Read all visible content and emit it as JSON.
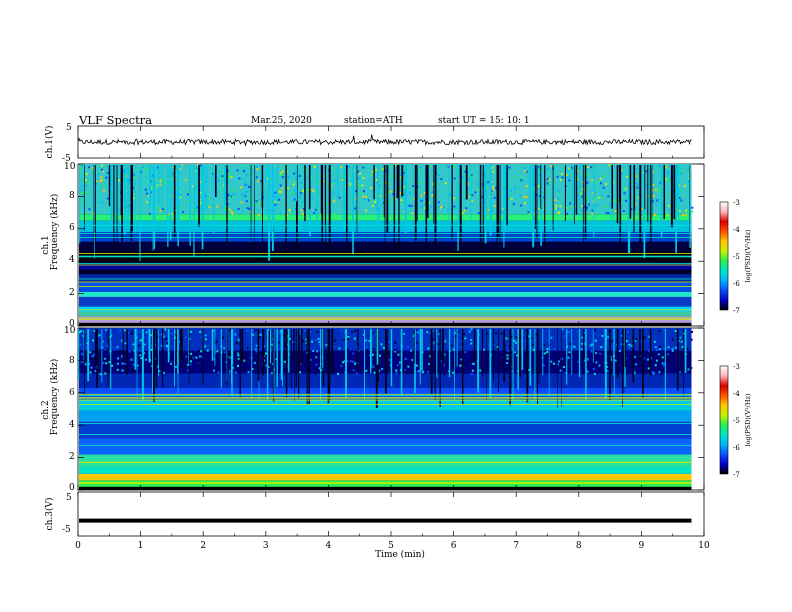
{
  "header": {
    "title": "VLF  Spectra",
    "date": "Mar.25,  2020",
    "station": "station=ATH",
    "start": "start  UT  =   15: 10: 1"
  },
  "chart_data": [
    {
      "type": "line",
      "name": "ch1-waveform",
      "ylabel": "ch.1(V)",
      "ylim": [
        -5,
        5
      ],
      "yticks": [
        "5",
        "-5"
      ],
      "xlim": [
        0,
        10
      ]
    },
    {
      "type": "heatmap",
      "name": "ch1-spectrogram",
      "ylabel_channel": "ch.1",
      "ylabel": "Frequency (kHz)",
      "ylim": [
        0,
        10
      ],
      "yticks": [
        "0",
        "2",
        "4",
        "6",
        "8",
        "10"
      ],
      "xlim": [
        0,
        9.8
      ],
      "colorbar": {
        "label": "log(PSD)(V²/Hz)",
        "range": [
          -7,
          -3
        ],
        "ticks": [
          "-3",
          "-4",
          "-5",
          "-6",
          "-7"
        ],
        "colors": [
          "#000000",
          "#0000c8",
          "#0a50ff",
          "#00b4ff",
          "#00e6c8",
          "#28f050",
          "#c8f000",
          "#ffc800",
          "#ff5000",
          "#dc0000",
          "#ffb4b4",
          "#ffffff"
        ]
      }
    },
    {
      "type": "heatmap",
      "name": "ch2-spectrogram",
      "ylabel_channel": "ch.2",
      "ylabel": "Frequency (kHz)",
      "ylim": [
        0,
        10
      ],
      "yticks": [
        "0",
        "2",
        "4",
        "6",
        "8",
        "10"
      ],
      "xlim": [
        0,
        9.8
      ],
      "colorbar": {
        "label": "log(PSD)(V²/Hz)",
        "range": [
          -7,
          -3
        ],
        "ticks": [
          "-3",
          "-4",
          "-5",
          "-6",
          "-7"
        ]
      }
    },
    {
      "type": "line",
      "name": "ch3-waveform",
      "ylabel": "ch.3(V)",
      "ylim": [
        -5,
        5
      ],
      "yticks": [
        "5",
        "-5"
      ],
      "xlim": [
        0,
        10
      ],
      "level": -1.5
    }
  ],
  "xaxis": {
    "label": "Time  (min)",
    "ticks": [
      "0",
      "1",
      "2",
      "3",
      "4",
      "5",
      "6",
      "7",
      "8",
      "9",
      "10"
    ]
  }
}
